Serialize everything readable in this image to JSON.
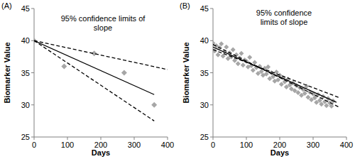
{
  "chart_data": [
    {
      "type": "scatter",
      "title": "(A)",
      "annotation": "95% confidence limits of slope",
      "x_label": "Days",
      "y_label": "Biomarker Value",
      "xlim": [
        0,
        400
      ],
      "xticks": [
        0,
        100,
        200,
        300,
        400
      ],
      "ylim": [
        25,
        45
      ],
      "yticks": [
        25,
        30,
        35,
        40,
        45
      ],
      "grid": false,
      "series": [
        {
          "type": "scatter",
          "marker": "diamond",
          "color": "#a6a6a6",
          "x": [
            0,
            90,
            180,
            270,
            360
          ],
          "values": [
            40,
            36,
            38,
            35,
            30
          ]
        },
        {
          "type": "line",
          "line_style": "solid",
          "color": "#000000",
          "x": [
            0,
            360
          ],
          "values": [
            40,
            31.6
          ]
        },
        {
          "type": "line",
          "line_style": "dashed",
          "color": "#000000",
          "x": [
            0,
            400
          ],
          "values": [
            40,
            35.5
          ]
        },
        {
          "type": "line",
          "line_style": "dashed",
          "color": "#000000",
          "x": [
            0,
            360
          ],
          "values": [
            40,
            27.5
          ]
        }
      ]
    },
    {
      "type": "scatter",
      "title": "(B)",
      "annotation": "95% confidence limits of slope",
      "x_label": "Days",
      "y_label": "Biomarker Value",
      "xlim": [
        0,
        400
      ],
      "xticks": [
        0,
        100,
        200,
        300,
        400
      ],
      "ylim": [
        25,
        45
      ],
      "yticks": [
        25,
        30,
        35,
        40,
        45
      ],
      "grid": false,
      "series": [
        {
          "type": "scatter",
          "marker": "diamond",
          "color": "#a6a6a6",
          "x": [
            0,
            5,
            10,
            15,
            20,
            25,
            30,
            35,
            40,
            45,
            50,
            55,
            60,
            65,
            70,
            75,
            80,
            85,
            90,
            95,
            100,
            105,
            110,
            115,
            120,
            125,
            130,
            135,
            140,
            145,
            150,
            155,
            160,
            165,
            170,
            175,
            180,
            185,
            190,
            195,
            200,
            205,
            210,
            215,
            220,
            225,
            230,
            235,
            240,
            245,
            250,
            255,
            260,
            265,
            270,
            275,
            280,
            285,
            290,
            295,
            300,
            305,
            310,
            315,
            320,
            325,
            330,
            335,
            340,
            345,
            350,
            355,
            360
          ],
          "values": [
            39.6,
            38.4,
            39.2,
            37.8,
            38.9,
            39.5,
            37.6,
            38.3,
            39.0,
            37.2,
            38.1,
            37.5,
            38.6,
            36.9,
            37.8,
            36.4,
            37.3,
            38.0,
            36.2,
            37.0,
            36.8,
            35.9,
            37.4,
            36.1,
            35.4,
            36.6,
            35.8,
            34.9,
            36.0,
            35.2,
            34.6,
            35.7,
            34.8,
            35.9,
            34.1,
            35.0,
            34.4,
            33.7,
            35.1,
            33.9,
            34.6,
            33.2,
            34.2,
            33.6,
            32.8,
            34.0,
            33.1,
            32.5,
            33.4,
            32.2,
            33.0,
            31.9,
            32.7,
            31.5,
            32.4,
            31.8,
            32.9,
            31.2,
            32.0,
            30.8,
            31.7,
            31.1,
            30.4,
            31.6,
            30.7,
            30.1,
            31.3,
            30.5,
            29.9,
            31.0,
            30.3,
            29.8,
            30.6
          ]
        },
        {
          "type": "line",
          "line_style": "solid",
          "color": "#000000",
          "x": [
            0,
            370
          ],
          "values": [
            39.0,
            30.4
          ]
        },
        {
          "type": "line",
          "line_style": "dashed",
          "color": "#000000",
          "x": [
            0,
            380
          ],
          "values": [
            39.4,
            29.6
          ]
        },
        {
          "type": "line",
          "line_style": "dashed",
          "color": "#000000",
          "x": [
            0,
            380
          ],
          "values": [
            38.6,
            31.1
          ]
        }
      ]
    }
  ]
}
